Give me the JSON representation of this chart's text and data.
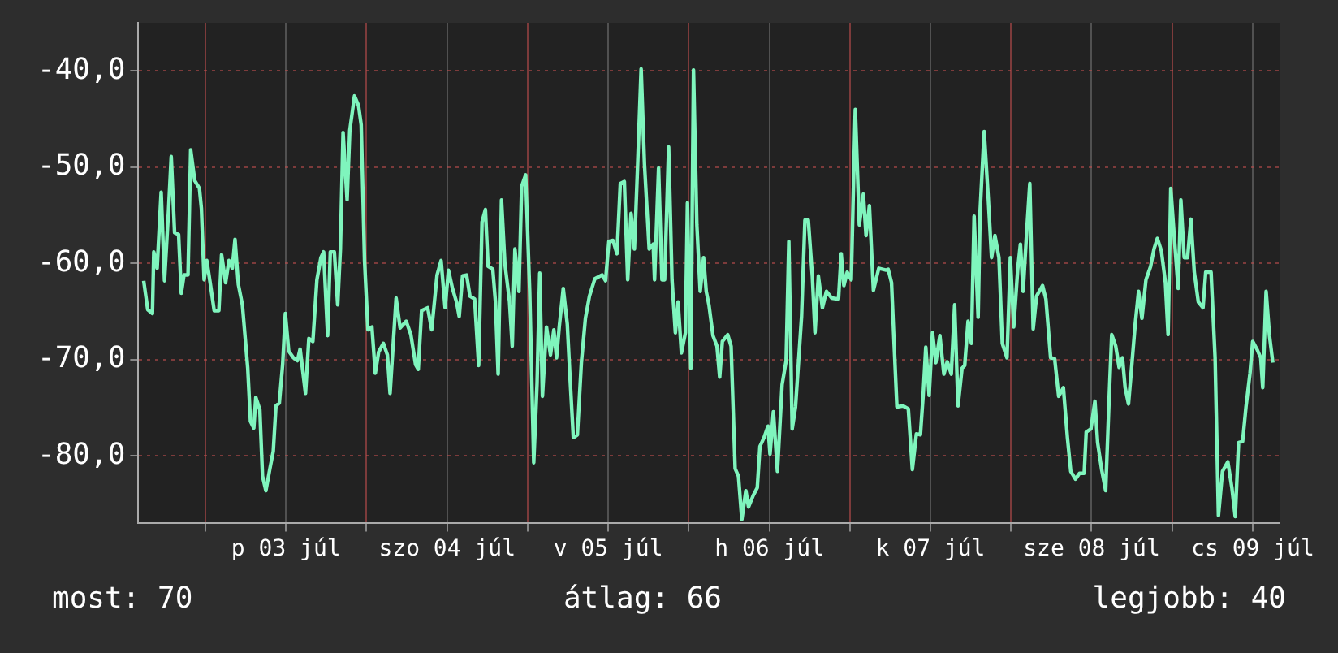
{
  "chart_data": {
    "type": "line",
    "grid": true,
    "legend": false,
    "marker": "none",
    "line_style": "solid",
    "xlim": [
      "--07-02T14:00",
      "--07-09T16:00"
    ],
    "xticks": [
      {
        "value": "--07-03",
        "label": null
      },
      {
        "value": "--07-03T12:00",
        "label": "p 03 júl"
      },
      {
        "value": "--07-04",
        "label": null
      },
      {
        "value": "--07-04T12:00",
        "label": "szo 04 júl"
      },
      {
        "value": "--07-05",
        "label": null
      },
      {
        "value": "--07-05T12:00",
        "label": "v 05 júl"
      },
      {
        "value": "--07-06",
        "label": null
      },
      {
        "value": "--07-06T12:00",
        "label": "h 06 júl"
      },
      {
        "value": "--07-07",
        "label": null
      },
      {
        "value": "--07-07T12:00",
        "label": "k 07 júl"
      },
      {
        "value": "--07-08",
        "label": null
      },
      {
        "value": "--07-08T12:00",
        "label": "sze 08 júl"
      },
      {
        "value": "--07-09",
        "label": null
      },
      {
        "value": "--07-09T12:00",
        "label": "cs 09 júl"
      }
    ],
    "ylim": [
      -87,
      -35
    ],
    "yticks": [
      {
        "value": -80,
        "label": "-80,0"
      },
      {
        "value": -70,
        "label": "-70,0"
      },
      {
        "value": -60,
        "label": "-60,0"
      },
      {
        "value": -50,
        "label": "-50,0"
      },
      {
        "value": -40,
        "label": "-40,0"
      }
    ],
    "annotations": [
      "most: 70",
      "átlag: 66",
      "legjobb: 40"
    ],
    "series": [
      {
        "color": "#7ff5bd",
        "x": [
          "--07-02T14:48",
          "--07-02T15:24",
          "--07-02T16:06",
          "--07-02T16:18",
          "--07-02T16:48",
          "--07-02T17:24",
          "--07-02T17:54",
          "--07-02T18:30",
          "--07-02T18:54",
          "--07-02T19:24",
          "--07-02T20:00",
          "--07-02T20:24",
          "--07-02T20:48",
          "--07-02T21:24",
          "--07-02T21:48",
          "--07-02T22:24",
          "--07-02T23:06",
          "--07-02T23:24",
          "--07-02T23:48",
          "--07-03T00:12",
          "--07-03T00:42",
          "--07-03T01:18",
          "--07-03T02:00",
          "--07-03T02:24",
          "--07-03T03:00",
          "--07-03T03:30",
          "--07-03T04:00",
          "--07-03T04:24",
          "--07-03T04:54",
          "--07-03T05:30",
          "--07-03T06:18",
          "--07-03T06:42",
          "--07-03T07:12",
          "--07-03T07:30",
          "--07-03T08:06",
          "--07-03T08:30",
          "--07-03T09:00",
          "--07-03T09:36",
          "--07-03T10:06",
          "--07-03T10:30",
          "--07-03T11:00",
          "--07-03T11:30",
          "--07-03T11:54",
          "--07-03T12:24",
          "--07-03T13:06",
          "--07-03T13:42",
          "--07-03T14:06",
          "--07-03T14:54",
          "--07-03T15:24",
          "--07-03T16:00",
          "--07-03T16:36",
          "--07-03T17:12",
          "--07-03T17:36",
          "--07-03T18:12",
          "--07-03T18:36",
          "--07-03T19:12",
          "--07-03T19:42",
          "--07-03T20:06",
          "--07-03T20:30",
          "--07-03T21:06",
          "--07-03T21:30",
          "--07-03T22:12",
          "--07-03T22:48",
          "--07-03T23:12",
          "--07-03T23:42",
          "--07-04T00:12",
          "--07-04T00:48",
          "--07-04T01:18",
          "--07-04T01:48",
          "--07-04T02:30",
          "--07-04T03:06",
          "--07-04T03:30",
          "--07-04T04:24",
          "--07-04T05:00",
          "--07-04T05:54",
          "--07-04T06:36",
          "--07-04T07:18",
          "--07-04T07:42",
          "--07-04T08:12",
          "--07-04T09:06",
          "--07-04T09:42",
          "--07-04T10:30",
          "--07-04T11:06",
          "--07-04T11:42",
          "--07-04T12:12",
          "--07-04T12:48",
          "--07-04T13:24",
          "--07-04T13:48",
          "--07-04T14:18",
          "--07-04T14:54",
          "--07-04T15:24",
          "--07-04T16:06",
          "--07-04T16:42",
          "--07-04T17:12",
          "--07-04T17:42",
          "--07-04T18:06",
          "--07-04T18:48",
          "--07-04T19:12",
          "--07-04T19:36",
          "--07-04T20:06",
          "--07-04T20:36",
          "--07-04T21:18",
          "--07-04T21:42",
          "--07-04T22:06",
          "--07-04T22:42",
          "--07-04T23:06",
          "--07-04T23:42",
          "--07-05T00:18",
          "--07-05T00:54",
          "--07-05T01:24",
          "--07-05T01:48",
          "--07-05T02:12",
          "--07-05T02:48",
          "--07-05T03:24",
          "--07-05T03:54",
          "--07-05T04:18",
          "--07-05T04:42",
          "--07-05T05:18",
          "--07-05T05:54",
          "--07-05T06:18",
          "--07-05T06:48",
          "--07-05T07:24",
          "--07-05T08:00",
          "--07-05T08:36",
          "--07-05T09:12",
          "--07-05T10:00",
          "--07-05T11:06",
          "--07-05T11:36",
          "--07-05T12:06",
          "--07-05T12:42",
          "--07-05T13:18",
          "--07-05T13:48",
          "--07-05T14:24",
          "--07-05T14:54",
          "--07-05T15:24",
          "--07-05T15:54",
          "--07-05T16:24",
          "--07-05T16:54",
          "--07-05T17:24",
          "--07-05T18:06",
          "--07-05T18:42",
          "--07-05T18:54",
          "--07-05T19:30",
          "--07-05T20:00",
          "--07-05T20:24",
          "--07-05T21:00",
          "--07-05T21:30",
          "--07-05T22:00",
          "--07-05T22:24",
          "--07-05T22:54",
          "--07-05T23:30",
          "--07-05T23:48",
          "--07-06T00:18",
          "--07-06T00:42",
          "--07-06T01:12",
          "--07-06T01:42",
          "--07-06T02:12",
          "--07-06T02:36",
          "--07-06T03:00",
          "--07-06T03:36",
          "--07-06T04:12",
          "--07-06T04:36",
          "--07-06T05:00",
          "--07-06T05:48",
          "--07-06T06:18",
          "--07-06T06:54",
          "--07-06T07:24",
          "--07-06T07:54",
          "--07-06T08:30",
          "--07-06T08:54",
          "--07-06T09:36",
          "--07-06T10:12",
          "--07-06T10:36",
          "--07-06T11:12",
          "--07-06T11:48",
          "--07-06T12:06",
          "--07-06T12:36",
          "--07-06T13:12",
          "--07-06T13:54",
          "--07-06T14:30",
          "--07-06T14:54",
          "--07-06T15:24",
          "--07-06T15:54",
          "--07-06T16:48",
          "--07-06T17:18",
          "--07-06T17:48",
          "--07-06T18:24",
          "--07-06T18:48",
          "--07-06T19:18",
          "--07-06T19:54",
          "--07-06T20:30",
          "--07-06T21:18",
          "--07-06T22:18",
          "--07-06T22:42",
          "--07-06T23:06",
          "--07-06T23:36",
          "--07-07T00:12",
          "--07-07T00:48",
          "--07-07T01:24",
          "--07-07T02:00",
          "--07-07T02:24",
          "--07-07T02:54",
          "--07-07T03:30",
          "--07-07T04:18",
          "--07-07T05:24",
          "--07-07T05:42",
          "--07-07T06:12",
          "--07-07T06:36",
          "--07-07T07:00",
          "--07-07T07:54",
          "--07-07T08:42",
          "--07-07T09:18",
          "--07-07T09:54",
          "--07-07T10:30",
          "--07-07T10:54",
          "--07-07T11:18",
          "--07-07T11:48",
          "--07-07T12:18",
          "--07-07T12:48",
          "--07-07T13:24",
          "--07-07T14:00",
          "--07-07T14:30",
          "--07-07T15:06",
          "--07-07T15:36",
          "--07-07T16:06",
          "--07-07T16:42",
          "--07-07T17:06",
          "--07-07T17:36",
          "--07-07T18:06",
          "--07-07T18:30",
          "--07-07T19:06",
          "--07-07T19:24",
          "--07-07T20:00",
          "--07-07T20:36",
          "--07-07T21:06",
          "--07-07T21:36",
          "--07-07T22:12",
          "--07-07T22:42",
          "--07-07T23:24",
          "--07-07T23:54",
          "--07-08T00:24",
          "--07-08T01:00",
          "--07-08T01:24",
          "--07-08T01:48",
          "--07-08T02:18",
          "--07-08T02:48",
          "--07-08T03:18",
          "--07-08T03:48",
          "--07-08T04:42",
          "--07-08T05:12",
          "--07-08T05:54",
          "--07-08T06:30",
          "--07-08T07:06",
          "--07-08T07:48",
          "--07-08T08:24",
          "--07-08T08:54",
          "--07-08T09:36",
          "--07-08T10:12",
          "--07-08T10:54",
          "--07-08T11:12",
          "--07-08T11:54",
          "--07-08T12:30",
          "--07-08T12:54",
          "--07-08T13:30",
          "--07-08T14:06",
          "--07-08T14:36",
          "--07-08T15:00",
          "--07-08T15:36",
          "--07-08T16:06",
          "--07-08T16:36",
          "--07-08T17:00",
          "--07-08T17:30",
          "--07-08T18:00",
          "--07-08T18:30",
          "--07-08T19:00",
          "--07-08T19:30",
          "--07-08T20:06",
          "--07-08T20:48",
          "--07-08T21:18",
          "--07-08T21:48",
          "--07-08T22:24",
          "--07-08T23:00",
          "--07-08T23:24",
          "--07-08T23:48",
          "--07-09T00:18",
          "--07-09T00:54",
          "--07-09T01:18",
          "--07-09T01:48",
          "--07-09T02:18",
          "--07-09T02:48",
          "--07-09T03:18",
          "--07-09T03:54",
          "--07-09T04:36",
          "--07-09T05:00",
          "--07-09T05:48",
          "--07-09T06:24",
          "--07-09T06:54",
          "--07-09T07:30",
          "--07-09T08:18",
          "--07-09T08:54",
          "--07-09T09:24",
          "--07-09T09:54",
          "--07-09T10:30",
          "--07-09T11:00",
          "--07-09T11:36",
          "--07-09T12:00",
          "--07-09T12:42",
          "--07-09T13:12",
          "--07-09T13:30",
          "--07-09T14:00",
          "--07-09T14:30",
          "--07-09T15:00"
        ],
        "values": [
          -61.8,
          -64.8,
          -65.2,
          -58.8,
          -60.5,
          -52.6,
          -61.8,
          -54.5,
          -48.9,
          -56.8,
          -57,
          -63.1,
          -61.2,
          -61.2,
          -48.2,
          -51.4,
          -52.2,
          -54.3,
          -61.7,
          -59.7,
          -62,
          -64.9,
          -64.9,
          -59.1,
          -62,
          -59.7,
          -60.5,
          -57.5,
          -62.2,
          -64.3,
          -70.9,
          -76.4,
          -77.1,
          -73.9,
          -75.2,
          -82.1,
          -83.6,
          -81.3,
          -79.5,
          -74.8,
          -74.5,
          -70.5,
          -65.2,
          -69.1,
          -69.8,
          -70.1,
          -68.9,
          -73.5,
          -67.8,
          -68.1,
          -61.7,
          -59.4,
          -58.8,
          -67.5,
          -58.8,
          -58.8,
          -64.3,
          -58.5,
          -46.4,
          -53.4,
          -46.2,
          -42.6,
          -43.6,
          -45.6,
          -59.7,
          -66.9,
          -66.6,
          -71.4,
          -69.2,
          -68.3,
          -69.5,
          -73.5,
          -63.6,
          -66.7,
          -66,
          -67.4,
          -70.5,
          -71,
          -64.9,
          -64.6,
          -66.9,
          -61.2,
          -59.7,
          -64.6,
          -60.7,
          -62.6,
          -64,
          -65.5,
          -61.3,
          -61.2,
          -63.4,
          -63.7,
          -70.6,
          -55.7,
          -54.4,
          -60.3,
          -60.6,
          -64,
          -71.5,
          -53.4,
          -60,
          -64,
          -68.6,
          -58.5,
          -62.9,
          -52,
          -50.8,
          -62.9,
          -80.7,
          -72.4,
          -61,
          -73.8,
          -66.6,
          -69.5,
          -66.9,
          -69.8,
          -66.6,
          -62.6,
          -66.3,
          -71.8,
          -78.1,
          -77.8,
          -70.3,
          -65.7,
          -63.4,
          -61.6,
          -61.2,
          -61.8,
          -57.7,
          -57.6,
          -59,
          -51.7,
          -51.5,
          -61.7,
          -54.8,
          -58.5,
          -49.4,
          -39.8,
          -49.7,
          -58.5,
          -58,
          -61.7,
          -50.1,
          -61.7,
          -61.7,
          -47.9,
          -61.7,
          -67.2,
          -64,
          -69.3,
          -67.2,
          -53.7,
          -70.9,
          -39.9,
          -56,
          -62.9,
          -59.4,
          -62.9,
          -64.3,
          -67.5,
          -68.6,
          -71.8,
          -68.1,
          -67.4,
          -68.6,
          -81.3,
          -82.1,
          -86.6,
          -83.6,
          -85.3,
          -84.1,
          -83.3,
          -79,
          -78.1,
          -76.9,
          -79.8,
          -75.4,
          -81.6,
          -72.6,
          -70.1,
          -57.7,
          -77.2,
          -74.9,
          -65.5,
          -55.5,
          -55.5,
          -61.3,
          -67.2,
          -61.3,
          -64.6,
          -62.9,
          -63.6,
          -63.7,
          -59,
          -62.3,
          -60.9,
          -61.7,
          -44,
          -56,
          -52.8,
          -57.1,
          -54,
          -62.8,
          -60.5,
          -60.7,
          -60.6,
          -62,
          -68.6,
          -74.9,
          -74.8,
          -75.1,
          -81.4,
          -77.7,
          -77.8,
          -73.8,
          -68.7,
          -73.7,
          -67.2,
          -70.3,
          -67.5,
          -71.5,
          -70.2,
          -71.5,
          -64.3,
          -74.8,
          -70.9,
          -70.6,
          -66,
          -68.3,
          -55.1,
          -65.6,
          -54.5,
          -46.3,
          -53.1,
          -59.4,
          -57.1,
          -59.4,
          -68.3,
          -69.8,
          -59.4,
          -66.6,
          -60.6,
          -58,
          -62.9,
          -57.1,
          -51.7,
          -66.8,
          -63.4,
          -62.3,
          -63.7,
          -69.8,
          -69.9,
          -73.8,
          -72.9,
          -78.1,
          -81.6,
          -82.4,
          -81.8,
          -81.8,
          -77.5,
          -77.2,
          -74.3,
          -78.6,
          -81.4,
          -83.6,
          -74.3,
          -67.4,
          -68.6,
          -70.8,
          -69.8,
          -72.9,
          -74.6,
          -70.5,
          -66.3,
          -62.9,
          -65.7,
          -61.7,
          -60.3,
          -58.5,
          -57.4,
          -58.7,
          -62,
          -67.4,
          -52.2,
          -57.1,
          -62.6,
          -53.4,
          -59.4,
          -59.4,
          -55.4,
          -60.9,
          -64,
          -64.6,
          -60.9,
          -60.9,
          -69.8,
          -86.2,
          -81.6,
          -80.6,
          -83.3,
          -86.3,
          -78.6,
          -78.5,
          -74.9,
          -71.4,
          -68.1,
          -69,
          -69.8,
          -72.9,
          -62.9,
          -67.5,
          -70.3
        ]
      }
    ]
  }
}
